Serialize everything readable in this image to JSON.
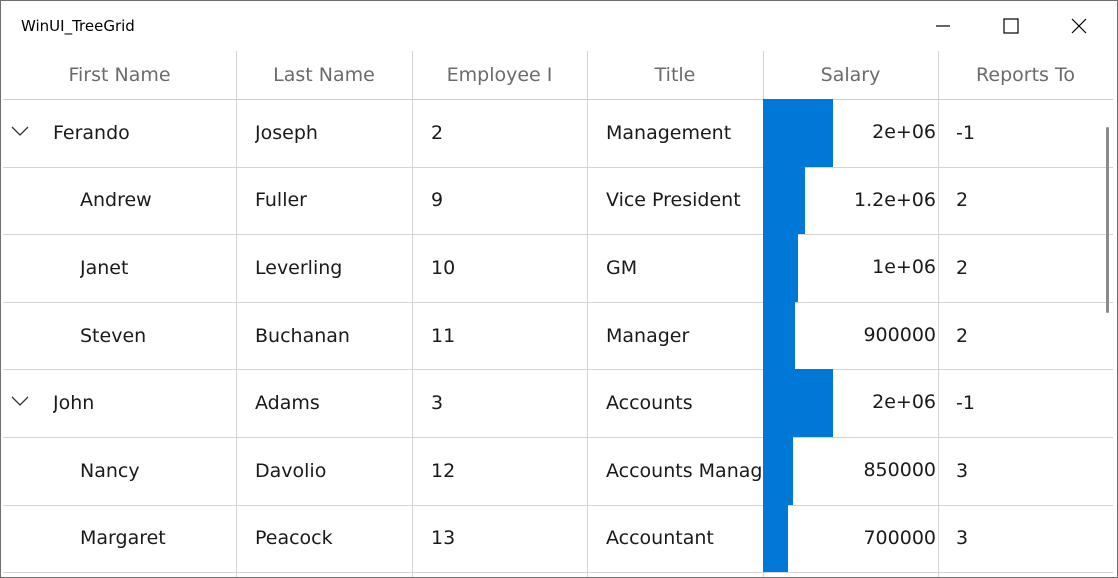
{
  "window": {
    "title": "WinUI_TreeGrid",
    "minimize_icon": "minimize-icon",
    "maximize_icon": "maximize-icon",
    "close_icon": "close-icon"
  },
  "columns": [
    "First Name",
    "Last Name",
    "Employee I",
    "Title",
    "Salary",
    "Reports To"
  ],
  "salary_bar_color": "#0078d7",
  "rows": [
    {
      "expanded": true,
      "level": 0,
      "first": "Ferando",
      "last": "Joseph",
      "id": "2",
      "title": "Management",
      "salary_text": "2e+06",
      "salary": 2000000,
      "reports": "-1"
    },
    {
      "expanded": null,
      "level": 1,
      "first": "Andrew",
      "last": "Fuller",
      "id": "9",
      "title": "Vice President",
      "salary_text": "1.2e+06",
      "salary": 1200000,
      "reports": "2"
    },
    {
      "expanded": null,
      "level": 1,
      "first": "Janet",
      "last": "Leverling",
      "id": "10",
      "title": "GM",
      "salary_text": "1e+06",
      "salary": 1000000,
      "reports": "2"
    },
    {
      "expanded": null,
      "level": 1,
      "first": "Steven",
      "last": "Buchanan",
      "id": "11",
      "title": "Manager",
      "salary_text": "900000",
      "salary": 900000,
      "reports": "2"
    },
    {
      "expanded": true,
      "level": 0,
      "first": "John",
      "last": "Adams",
      "id": "3",
      "title": "Accounts",
      "salary_text": "2e+06",
      "salary": 2000000,
      "reports": "-1"
    },
    {
      "expanded": null,
      "level": 1,
      "first": "Nancy",
      "last": "Davolio",
      "id": "12",
      "title": "Accounts Manager",
      "salary_text": "850000",
      "salary": 850000,
      "reports": "3"
    },
    {
      "expanded": null,
      "level": 1,
      "first": "Margaret",
      "last": "Peacock",
      "id": "13",
      "title": "Accountant",
      "salary_text": "700000",
      "salary": 700000,
      "reports": "3"
    }
  ]
}
